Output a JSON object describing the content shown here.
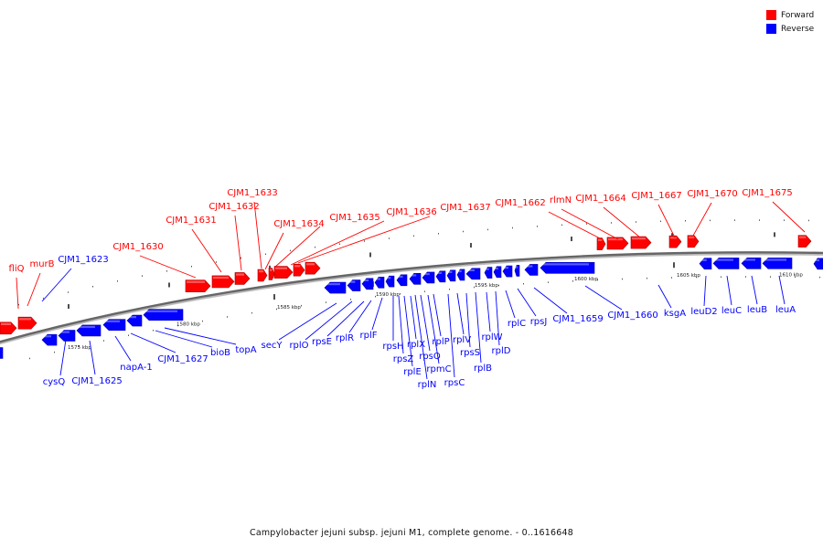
{
  "legend": [
    {
      "label": "Forward",
      "color": "#ff0000"
    },
    {
      "label": "Reverse",
      "color": "#0000ff"
    }
  ],
  "colors": {
    "forward": "#ff0000",
    "reverse": "#0000ff",
    "backbone": "#666666"
  },
  "caption": "Campylobacter jejuni subsp. jejuni M1, complete genome. - 0..1616648",
  "scale": {
    "unit": "kbp",
    "ticks": [
      {
        "kbp": 1575,
        "label": "1575 kbp"
      },
      {
        "kbp": 1580,
        "label": "1580 kbp"
      },
      {
        "kbp": 1585,
        "label": "1585 kbp"
      },
      {
        "kbp": 1590,
        "label": "1590 kbp"
      },
      {
        "kbp": 1595,
        "label": "1595 kbp"
      },
      {
        "kbp": 1600,
        "label": "1600 kbp"
      },
      {
        "kbp": 1605,
        "label": "1605 kbp"
      },
      {
        "kbp": 1610,
        "label": "1610 kbp"
      }
    ]
  },
  "genes": {
    "forward": [
      "fliQ",
      "murB",
      "CJM1_1630",
      "CJM1_1631",
      "CJM1_1632",
      "CJM1_1633",
      "CJM1_1634",
      "CJM1_1635",
      "CJM1_1636",
      "CJM1_1637",
      "CJM1_1662",
      "rlmN",
      "CJM1_1664",
      "CJM1_1667",
      "CJM1_1670",
      "CJM1_1675"
    ],
    "reverse": [
      "CJM1_1623",
      "cysQ",
      "CJM1_1625",
      "napA-1",
      "CJM1_1627",
      "bioB",
      "topA",
      "secY",
      "rplO",
      "rpsE",
      "rplR",
      "rplF",
      "rpsH",
      "rpsZ",
      "rplE",
      "rplX",
      "rplN",
      "rpsQ",
      "rpmC",
      "rplP",
      "rpsC",
      "rplV",
      "rpsS",
      "rplB",
      "rplW",
      "rplD",
      "rplC",
      "rpsJ",
      "CJM1_1659",
      "CJM1_1660",
      "ksgA",
      "leuD2",
      "leuC",
      "leuB",
      "leuA"
    ]
  }
}
